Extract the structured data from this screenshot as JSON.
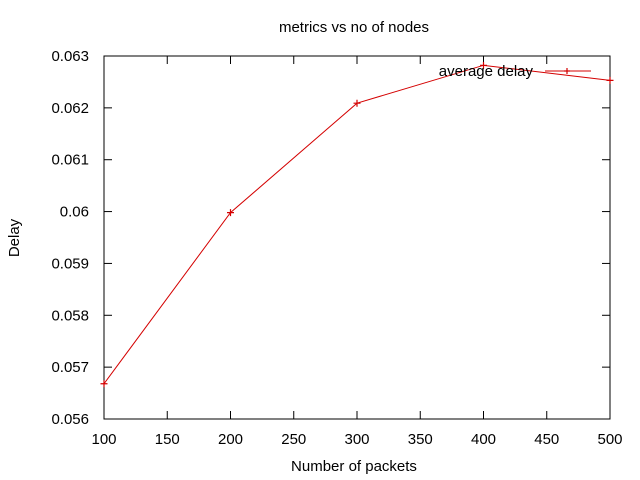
{
  "chart_data": {
    "type": "line",
    "title": "metrics vs no of nodes",
    "xlabel": "Number of packets",
    "ylabel": "Delay",
    "xlim": [
      100,
      500
    ],
    "ylim": [
      0.056,
      0.063
    ],
    "x_ticks": [
      100,
      150,
      200,
      250,
      300,
      350,
      400,
      450,
      500
    ],
    "y_ticks": [
      0.056,
      0.057,
      0.058,
      0.059,
      0.06,
      0.061,
      0.062,
      0.063
    ],
    "y_tick_labels": [
      "0.056",
      "0.057",
      "0.058",
      "0.059",
      "0.06",
      "0.061",
      "0.062",
      "0.063"
    ],
    "grid": false,
    "legend_position": "top-right",
    "series": [
      {
        "name": "average delay",
        "color": "#d40000",
        "marker": "plus",
        "x": [
          100,
          200,
          300,
          400,
          500
        ],
        "y": [
          0.05668,
          0.05998,
          0.06209,
          0.06282,
          0.06253
        ]
      }
    ]
  }
}
